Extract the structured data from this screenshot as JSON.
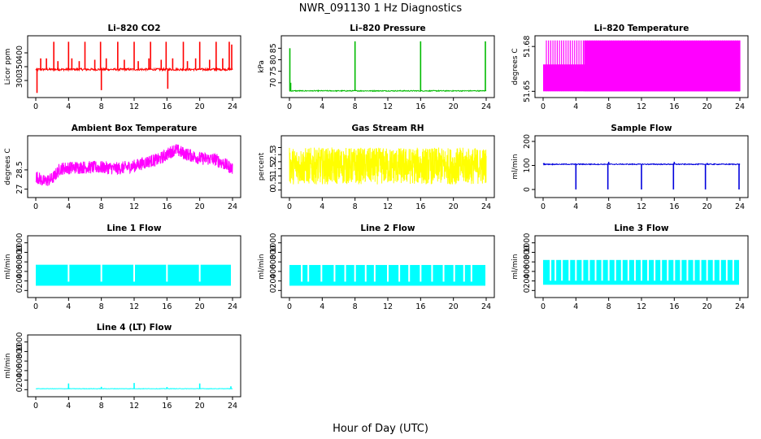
{
  "figure": {
    "title": "NWR_091130  1 Hz Diagnostics",
    "xlabel": "Hour of Day (UTC)"
  },
  "chart_data": [
    {
      "id": "co2",
      "type": "line",
      "title": "Li–820 CO2",
      "ylabel": "Licor ppm",
      "color": "#ff0000",
      "xlim": [
        0,
        24
      ],
      "xticks": [
        0,
        4,
        8,
        12,
        16,
        20,
        24
      ],
      "ylim": [
        250,
        450
      ],
      "yticks": [
        300,
        350,
        400
      ],
      "baseline": 340,
      "noise": 4,
      "spikes": [
        {
          "x": 0.15,
          "y": 255
        },
        {
          "x": 0.6,
          "y": 380
        },
        {
          "x": 1.3,
          "y": 380
        },
        {
          "x": 2.2,
          "y": 440
        },
        {
          "x": 2.7,
          "y": 370
        },
        {
          "x": 4.0,
          "y": 440
        },
        {
          "x": 4.4,
          "y": 380
        },
        {
          "x": 5.3,
          "y": 370
        },
        {
          "x": 6.0,
          "y": 440
        },
        {
          "x": 7.2,
          "y": 375
        },
        {
          "x": 7.9,
          "y": 440
        },
        {
          "x": 8.0,
          "y": 265
        },
        {
          "x": 8.6,
          "y": 380
        },
        {
          "x": 10.0,
          "y": 440
        },
        {
          "x": 10.8,
          "y": 375
        },
        {
          "x": 12.0,
          "y": 440
        },
        {
          "x": 12.5,
          "y": 370
        },
        {
          "x": 13.8,
          "y": 380
        },
        {
          "x": 14.0,
          "y": 440
        },
        {
          "x": 15.3,
          "y": 375
        },
        {
          "x": 15.9,
          "y": 440
        },
        {
          "x": 16.1,
          "y": 270
        },
        {
          "x": 16.7,
          "y": 380
        },
        {
          "x": 18.0,
          "y": 440
        },
        {
          "x": 18.5,
          "y": 370
        },
        {
          "x": 19.5,
          "y": 380
        },
        {
          "x": 20.0,
          "y": 440
        },
        {
          "x": 21.2,
          "y": 375
        },
        {
          "x": 22.0,
          "y": 440
        },
        {
          "x": 22.8,
          "y": 380
        },
        {
          "x": 23.6,
          "y": 440
        },
        {
          "x": 23.9,
          "y": 430
        }
      ]
    },
    {
      "id": "pressure",
      "type": "line",
      "title": "Li–820 Pressure",
      "ylabel": "kPa",
      "color": "#00bb00",
      "xlim": [
        0,
        24
      ],
      "xticks": [
        0,
        4,
        8,
        12,
        16,
        20,
        24
      ],
      "ylim": [
        65,
        89
      ],
      "yticks": [
        70,
        75,
        80,
        85
      ],
      "baseline": 66.5,
      "noise": 0.2,
      "spikes": [
        {
          "x": 0.05,
          "y": 85
        },
        {
          "x": 0.15,
          "y": 70
        },
        {
          "x": 8.0,
          "y": 88
        },
        {
          "x": 16.0,
          "y": 88
        },
        {
          "x": 23.9,
          "y": 88
        }
      ]
    },
    {
      "id": "licor_temp",
      "type": "line",
      "title": "Li–820 Temperature",
      "ylabel": "degrees C",
      "color": "#ff00ff",
      "xlim": [
        0,
        24
      ],
      "xticks": [
        0,
        4,
        8,
        12,
        16,
        20,
        24
      ],
      "ylim": [
        51.648,
        51.685
      ],
      "yticks": [
        51.65,
        51.68
      ],
      "band": {
        "from": 0,
        "to": 24,
        "lo": 51.65,
        "hi": 51.668
      },
      "band2": {
        "from": 0.4,
        "to": 24,
        "lo": 51.65,
        "hi": 51.684
      }
    },
    {
      "id": "ambient",
      "type": "line",
      "title": "Ambient Box Temperature",
      "ylabel": "degrees C",
      "color": "#ff00ff",
      "xlim": [
        0,
        24
      ],
      "xticks": [
        0,
        4,
        8,
        12,
        16,
        20,
        24
      ],
      "ylim": [
        26.6,
        30.9
      ],
      "yticks": [
        27.0,
        28.5
      ],
      "trend": [
        {
          "x": 0,
          "y": 28.0
        },
        {
          "x": 1,
          "y": 27.6
        },
        {
          "x": 2,
          "y": 27.8
        },
        {
          "x": 3,
          "y": 28.6
        },
        {
          "x": 5,
          "y": 28.7
        },
        {
          "x": 8,
          "y": 28.7
        },
        {
          "x": 10,
          "y": 28.6
        },
        {
          "x": 12,
          "y": 28.8
        },
        {
          "x": 14,
          "y": 29.2
        },
        {
          "x": 15,
          "y": 29.3
        },
        {
          "x": 16,
          "y": 29.7
        },
        {
          "x": 17,
          "y": 30.1
        },
        {
          "x": 18,
          "y": 29.8
        },
        {
          "x": 20,
          "y": 29.4
        },
        {
          "x": 22,
          "y": 29.3
        },
        {
          "x": 24,
          "y": 28.6
        }
      ],
      "noise": 0.5
    },
    {
      "id": "rh",
      "type": "line",
      "title": "Gas Stream RH",
      "ylabel": "percent",
      "color": "#ffff00",
      "xlim": [
        0,
        24
      ],
      "xticks": [
        0,
        4,
        8,
        12,
        16,
        20,
        24
      ],
      "ylim": [
        -0.3,
        3.6
      ],
      "yticks": [
        0.0,
        0.5,
        1.0,
        1.5,
        2.0,
        2.5,
        3.0
      ],
      "center": 1.7,
      "noise": 1.3
    },
    {
      "id": "sample_flow",
      "type": "line",
      "title": "Sample Flow",
      "ylabel": "ml/min",
      "color": "#0000dd",
      "xlim": [
        0,
        24
      ],
      "xticks": [
        0,
        4,
        8,
        12,
        16,
        20,
        24
      ],
      "ylim": [
        -20,
        210
      ],
      "yticks": [
        0,
        100,
        200
      ],
      "baseline": 105,
      "noise": 2,
      "spikes": [
        {
          "x": 0.1,
          "y": 110
        },
        {
          "x": 4.0,
          "y": 0
        },
        {
          "x": 7.9,
          "y": 0
        },
        {
          "x": 8.0,
          "y": 115
        },
        {
          "x": 12.0,
          "y": 0
        },
        {
          "x": 15.9,
          "y": 0
        },
        {
          "x": 16.0,
          "y": 115
        },
        {
          "x": 19.8,
          "y": 0
        },
        {
          "x": 20.0,
          "y": 110
        },
        {
          "x": 23.9,
          "y": 0
        }
      ]
    },
    {
      "id": "line1",
      "type": "line",
      "title": "Line 1 Flow",
      "ylabel": "ml/min",
      "color": "#00ffff",
      "xlim": [
        0,
        24
      ],
      "xticks": [
        0,
        4,
        8,
        12,
        16,
        20,
        24
      ],
      "ylim": [
        -80,
        1080
      ],
      "yticks": [
        0,
        200,
        400,
        600,
        800,
        1000
      ],
      "band": {
        "from": 0,
        "to": 23.8,
        "lo": 100,
        "hi": 540
      },
      "gaps": [
        4.0,
        8.0,
        12.0,
        16.0,
        20.0
      ]
    },
    {
      "id": "line2",
      "type": "line",
      "title": "Line 2 Flow",
      "ylabel": "ml/min",
      "color": "#00ffff",
      "xlim": [
        0,
        24
      ],
      "xticks": [
        0,
        4,
        8,
        12,
        16,
        20,
        24
      ],
      "ylim": [
        -80,
        1080
      ],
      "yticks": [
        0,
        200,
        400,
        600,
        800,
        1000
      ],
      "band": {
        "from": 0,
        "to": 23.9,
        "lo": 100,
        "hi": 535
      },
      "gaps": [
        1.5,
        2.3,
        3.9,
        5.5,
        6.8,
        8.0,
        9.3,
        10.4,
        12.0,
        13.4,
        14.6,
        16.0,
        17.4,
        18.8,
        20.1,
        21.3,
        22.2
      ]
    },
    {
      "id": "line3",
      "type": "line",
      "title": "Line 3 Flow",
      "ylabel": "ml/min",
      "color": "#00ffff",
      "xlim": [
        0,
        24
      ],
      "xticks": [
        0,
        4,
        8,
        12,
        16,
        20,
        24
      ],
      "ylim": [
        -80,
        1080
      ],
      "yticks": [
        0,
        200,
        400,
        600,
        800,
        1000
      ],
      "band": {
        "from": 0,
        "to": 23.9,
        "lo": 120,
        "hi": 640
      },
      "gaps": [
        0.9,
        1.5,
        2.3,
        3.2,
        4.0,
        4.8,
        5.6,
        6.4,
        7.2,
        8.0,
        8.8,
        9.6,
        10.4,
        11.2,
        12.0,
        12.8,
        13.6,
        14.4,
        15.2,
        16.0,
        16.8,
        17.6,
        18.4,
        19.2,
        20.0,
        20.8,
        21.6,
        22.4,
        23.2
      ]
    },
    {
      "id": "line4",
      "type": "line",
      "title": "Line 4 (LT) Flow",
      "ylabel": "ml/min",
      "color": "#00ffff",
      "xlim": [
        0,
        24
      ],
      "xticks": [
        0,
        4,
        8,
        12,
        16,
        20,
        24
      ],
      "ylim": [
        -80,
        1080
      ],
      "yticks": [
        0,
        200,
        400,
        600,
        800,
        1000
      ],
      "baseline": 20,
      "noise": 4,
      "spikes": [
        {
          "x": 4.0,
          "y": 130
        },
        {
          "x": 8.0,
          "y": 60
        },
        {
          "x": 12.0,
          "y": 140
        },
        {
          "x": 16.0,
          "y": 55
        },
        {
          "x": 20.0,
          "y": 130
        },
        {
          "x": 23.8,
          "y": 70
        }
      ]
    }
  ]
}
